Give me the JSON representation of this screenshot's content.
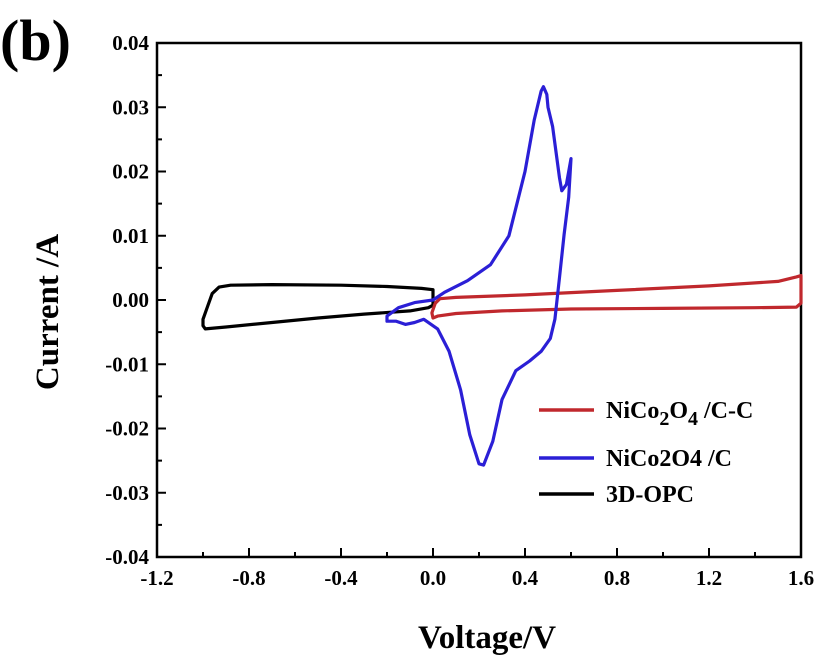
{
  "panel_label": "(b)",
  "chart_data": {
    "type": "line",
    "title": "",
    "xlabel": "Voltage/V",
    "ylabel": "Current /A",
    "xlim": [
      -1.2,
      1.6
    ],
    "ylim": [
      -0.04,
      0.04
    ],
    "xticks": [
      "-1.2",
      "-0.8",
      "-0.4",
      "0.0",
      "0.4",
      "0.8",
      "1.2",
      "1.6"
    ],
    "xtick_values": [
      -1.2,
      -0.8,
      -0.4,
      0.0,
      0.4,
      0.8,
      1.2,
      1.6
    ],
    "yticks": [
      "0.04",
      "0.03",
      "0.02",
      "0.01",
      "0.00",
      "-0.01",
      "-0.02",
      "-0.03",
      "-0.04"
    ],
    "ytick_values": [
      0.04,
      0.03,
      0.02,
      0.01,
      0.0,
      -0.01,
      -0.02,
      -0.03,
      -0.04
    ],
    "legend_position": "bottom-right",
    "grid": false,
    "series": [
      {
        "name": "NiCo2O4 /C-C",
        "legend_main": "NiCo",
        "legend_sub1": "2",
        "legend_mid": "O",
        "legend_sub2": "4",
        "legend_tail": " /C-C",
        "color": "#c0282d",
        "points": [
          [
            0.0,
            -0.0015
          ],
          [
            0.01,
            -0.0005
          ],
          [
            0.03,
            0.0002
          ],
          [
            0.1,
            0.0004
          ],
          [
            0.4,
            0.0008
          ],
          [
            0.8,
            0.0015
          ],
          [
            1.2,
            0.0022
          ],
          [
            1.5,
            0.0029
          ],
          [
            1.58,
            0.0036
          ],
          [
            1.6,
            0.0038
          ],
          [
            1.6,
            0.0015
          ],
          [
            1.6,
            -0.0005
          ],
          [
            1.58,
            -0.0011
          ],
          [
            1.4,
            -0.0012
          ],
          [
            1.0,
            -0.0013
          ],
          [
            0.6,
            -0.0014
          ],
          [
            0.3,
            -0.0017
          ],
          [
            0.1,
            -0.0021
          ],
          [
            0.02,
            -0.0025
          ],
          [
            0.0,
            -0.0028
          ],
          [
            -0.005,
            -0.002
          ],
          [
            0.0,
            -0.0015
          ]
        ]
      },
      {
        "name": "NiCo2O4 /C",
        "legend_text": "NiCo2O4 /C",
        "color": "#2b1fd6",
        "points": [
          [
            -0.2,
            -0.0033
          ],
          [
            -0.2,
            -0.0025
          ],
          [
            -0.15,
            -0.0012
          ],
          [
            -0.08,
            -0.0004
          ],
          [
            0.0,
            0.0
          ],
          [
            0.05,
            0.0012
          ],
          [
            0.15,
            0.003
          ],
          [
            0.25,
            0.0055
          ],
          [
            0.33,
            0.01
          ],
          [
            0.4,
            0.02
          ],
          [
            0.44,
            0.028
          ],
          [
            0.47,
            0.0325
          ],
          [
            0.48,
            0.0332
          ],
          [
            0.495,
            0.032
          ],
          [
            0.5,
            0.03
          ],
          [
            0.52,
            0.027
          ],
          [
            0.55,
            0.019
          ],
          [
            0.56,
            0.017
          ],
          [
            0.58,
            0.018
          ],
          [
            0.6,
            0.022
          ],
          [
            0.59,
            0.016
          ],
          [
            0.57,
            0.0102
          ],
          [
            0.55,
            0.0035
          ],
          [
            0.53,
            -0.003
          ],
          [
            0.51,
            -0.006
          ],
          [
            0.47,
            -0.008
          ],
          [
            0.42,
            -0.0095
          ],
          [
            0.36,
            -0.011
          ],
          [
            0.3,
            -0.0155
          ],
          [
            0.26,
            -0.022
          ],
          [
            0.22,
            -0.0257
          ],
          [
            0.2,
            -0.0255
          ],
          [
            0.16,
            -0.021
          ],
          [
            0.12,
            -0.014
          ],
          [
            0.07,
            -0.008
          ],
          [
            0.02,
            -0.0045
          ],
          [
            -0.04,
            -0.003
          ],
          [
            -0.08,
            -0.0035
          ],
          [
            -0.12,
            -0.0038
          ],
          [
            -0.16,
            -0.0033
          ],
          [
            -0.2,
            -0.0033
          ]
        ]
      },
      {
        "name": "3D-OPC",
        "legend_text": "3D-OPC",
        "color": "#000000",
        "points": [
          [
            0.0,
            0.001
          ],
          [
            0.0,
            -0.0008
          ],
          [
            -0.02,
            -0.0012
          ],
          [
            -0.1,
            -0.0017
          ],
          [
            -0.3,
            -0.0022
          ],
          [
            -0.5,
            -0.0028
          ],
          [
            -0.7,
            -0.0035
          ],
          [
            -0.9,
            -0.0042
          ],
          [
            -0.99,
            -0.0045
          ],
          [
            -1.0,
            -0.004
          ],
          [
            -1.0,
            -0.003
          ],
          [
            -0.98,
            -0.001
          ],
          [
            -0.96,
            0.001
          ],
          [
            -0.93,
            0.002
          ],
          [
            -0.88,
            0.0023
          ],
          [
            -0.7,
            0.0024
          ],
          [
            -0.4,
            0.0023
          ],
          [
            -0.2,
            0.0021
          ],
          [
            -0.05,
            0.0018
          ],
          [
            0.0,
            0.0016
          ],
          [
            0.0,
            0.001
          ]
        ]
      }
    ]
  }
}
